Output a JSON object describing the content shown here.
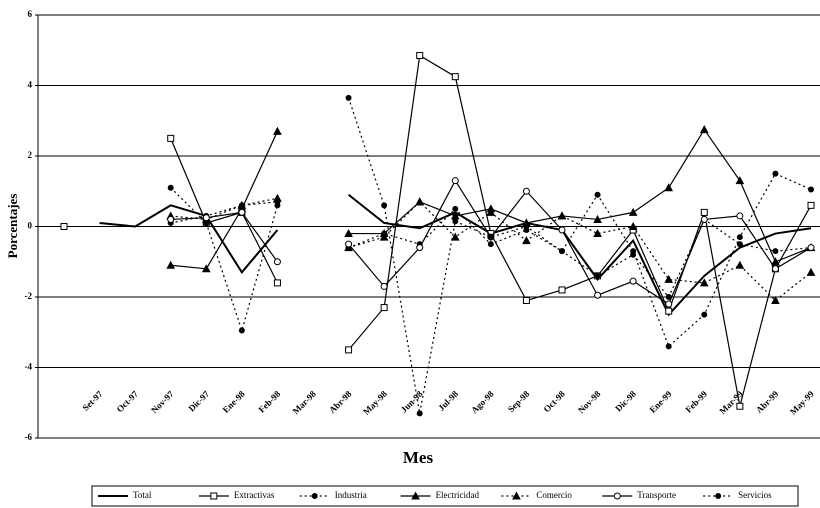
{
  "chart_data": {
    "type": "line",
    "y_label": "Porcentajes",
    "x_label": "Mes",
    "categories": [
      null,
      "Set-97",
      "Oct-97",
      "Nov-97",
      "Dic-97",
      "Ene-98",
      "Feb-98",
      "Mar-98",
      "Abr-98",
      "May-98",
      "Jun-98",
      "Jul-98",
      "Ago-98",
      "Sep-98",
      "Oct-98",
      "Nov-98",
      "Dic-98",
      "Ene-99",
      "Feb-99",
      "Mar-99",
      "Abr-99",
      "May-99"
    ],
    "ylim": [
      -6,
      6
    ],
    "yticks": [
      -6,
      -4,
      -2,
      0,
      2,
      4,
      6
    ],
    "grid": true,
    "series": [
      {
        "name": "Total",
        "color": "#000000",
        "style": "solid",
        "marker": "none",
        "values": [
          null,
          0.1,
          0,
          0.6,
          0.3,
          -1.3,
          -0.1,
          null,
          0.9,
          0.1,
          -0.05,
          0.4,
          -0.2,
          0.1,
          -0.1,
          -1.5,
          -0.4,
          -2.5,
          -1.4,
          -0.6,
          -0.2,
          -0.05
        ]
      },
      {
        "name": "Extractivas",
        "color": "#000000",
        "style": "solid",
        "marker": "square",
        "values": [
          0,
          null,
          null,
          2.5,
          0.1,
          0.4,
          -1.6,
          null,
          -3.5,
          -2.3,
          4.85,
          4.25,
          -0.2,
          -2.1,
          -1.8,
          -1.4,
          -0.1,
          -2.4,
          0.4,
          -5.1,
          -1.2,
          0.6
        ]
      },
      {
        "name": "Industria",
        "color": "#000000",
        "style": "dotted",
        "marker": "dot",
        "values": [
          null,
          null,
          null,
          0.1,
          0.3,
          0.6,
          0.7,
          null,
          -0.6,
          -0.2,
          -0.5,
          0.5,
          -0.5,
          -0.1,
          -0.7,
          -1.4,
          -0.8,
          -2.0,
          0.2,
          -0.5,
          -0.7,
          -0.6
        ]
      },
      {
        "name": "Electricidad",
        "color": "#000000",
        "style": "solid",
        "marker": "triangle",
        "values": [
          null,
          null,
          null,
          -1.1,
          -1.2,
          0.5,
          2.7,
          null,
          -0.2,
          -0.2,
          0.7,
          0.3,
          0.5,
          0.1,
          0.3,
          0.2,
          0.4,
          1.1,
          2.75,
          1.3,
          -1.0,
          -0.6
        ]
      },
      {
        "name": "Comercio",
        "color": "#000000",
        "style": "dotted",
        "marker": "triangle",
        "values": [
          null,
          null,
          null,
          0.3,
          0.2,
          0.6,
          0.8,
          null,
          -0.6,
          -0.3,
          0.7,
          -0.3,
          0.4,
          -0.4,
          0.3,
          -0.2,
          0.0,
          -1.5,
          -1.6,
          -1.1,
          -2.1,
          -1.3
        ]
      },
      {
        "name": "Transporte",
        "color": "#000000",
        "style": "solid",
        "marker": "circle",
        "values": [
          null,
          null,
          null,
          0.2,
          0.25,
          0.4,
          -1.0,
          null,
          -0.5,
          -1.7,
          -0.6,
          1.3,
          -0.3,
          1.0,
          -0.1,
          -1.95,
          -1.55,
          -2.2,
          0.2,
          0.3,
          -1.2,
          -0.6
        ]
      },
      {
        "name": "Servicios",
        "color": "#000000",
        "style": "dotted",
        "marker": "dot",
        "values": [
          null,
          null,
          null,
          1.1,
          0.1,
          -2.95,
          0.6,
          null,
          3.65,
          0.6,
          -5.3,
          0.15,
          -0.3,
          0.0,
          -0.7,
          0.9,
          -0.7,
          -3.4,
          -2.5,
          -0.3,
          1.5,
          1.05
        ]
      }
    ]
  }
}
